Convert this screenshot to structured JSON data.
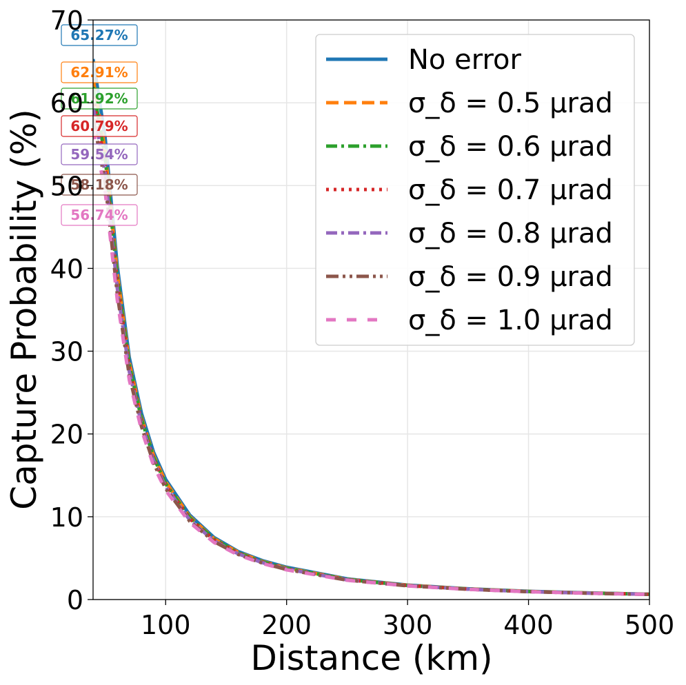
{
  "chart_data": {
    "type": "line",
    "title": "",
    "xlabel": "Distance (km)",
    "ylabel": "Capture Probability (%)",
    "xlim": [
      40,
      500
    ],
    "ylim": [
      0,
      70
    ],
    "xticks": [
      "100",
      "200",
      "300",
      "400",
      "500"
    ],
    "yticks": [
      "0",
      "10",
      "20",
      "30",
      "40",
      "50",
      "60",
      "70"
    ],
    "grid": true,
    "legend_position": "top-right",
    "x": [
      40,
      50,
      60,
      70,
      80,
      90,
      100,
      120,
      140,
      160,
      180,
      200,
      250,
      300,
      350,
      400,
      450,
      500
    ],
    "series": [
      {
        "name": "No error",
        "color": "#1f77b4",
        "dash": "solid",
        "start_label": "65.27%",
        "values": [
          65.27,
          55.8,
          40.3,
          29.2,
          22.5,
          17.8,
          14.5,
          10.2,
          7.5,
          5.8,
          4.7,
          3.9,
          2.5,
          1.75,
          1.3,
          1.0,
          0.8,
          0.65
        ]
      },
      {
        "name": "σ_δ = 0.5 μrad",
        "color": "#ff7f0e",
        "dash": "dashed",
        "start_label": "62.91%",
        "values": [
          62.91,
          54.2,
          39.4,
          28.6,
          22.0,
          17.4,
          14.2,
          10.0,
          7.35,
          5.7,
          4.6,
          3.8,
          2.45,
          1.72,
          1.28,
          0.98,
          0.79,
          0.64
        ]
      },
      {
        "name": "σ_δ = 0.6 μrad",
        "color": "#2ca02c",
        "dash": "dashdot",
        "start_label": "61.92%",
        "values": [
          61.92,
          53.4,
          38.9,
          28.3,
          21.8,
          17.2,
          14.0,
          9.9,
          7.3,
          5.65,
          4.55,
          3.76,
          2.43,
          1.7,
          1.27,
          0.97,
          0.78,
          0.64
        ]
      },
      {
        "name": "σ_δ = 0.7 μrad",
        "color": "#d62728",
        "dash": "dotted",
        "start_label": "60.79%",
        "values": [
          60.79,
          52.5,
          38.3,
          27.9,
          21.5,
          17.0,
          13.8,
          9.75,
          7.2,
          5.6,
          4.5,
          3.72,
          2.4,
          1.69,
          1.26,
          0.96,
          0.77,
          0.63
        ]
      },
      {
        "name": "σ_δ = 0.8 μrad",
        "color": "#9467bd",
        "dash": "dashdot",
        "start_label": "59.54%",
        "values": [
          59.54,
          51.5,
          37.6,
          27.5,
          21.2,
          16.8,
          13.6,
          9.6,
          7.1,
          5.52,
          4.45,
          3.68,
          2.38,
          1.68,
          1.25,
          0.95,
          0.77,
          0.63
        ]
      },
      {
        "name": "σ_δ = 0.9 μrad",
        "color": "#8c564b",
        "dash": "dashdotdot",
        "start_label": "58.18%",
        "values": [
          58.18,
          50.4,
          36.9,
          27.0,
          20.9,
          16.5,
          13.4,
          9.45,
          7.0,
          5.45,
          4.4,
          3.63,
          2.35,
          1.66,
          1.24,
          0.95,
          0.76,
          0.62
        ]
      },
      {
        "name": "σ_δ = 1.0 μrad",
        "color": "#e377c2",
        "dash": "loosedash",
        "start_label": "56.74%",
        "values": [
          56.74,
          49.3,
          36.2,
          26.5,
          20.5,
          16.2,
          13.2,
          9.3,
          6.9,
          5.38,
          4.35,
          3.59,
          2.33,
          1.65,
          1.23,
          0.94,
          0.76,
          0.62
        ]
      }
    ]
  }
}
